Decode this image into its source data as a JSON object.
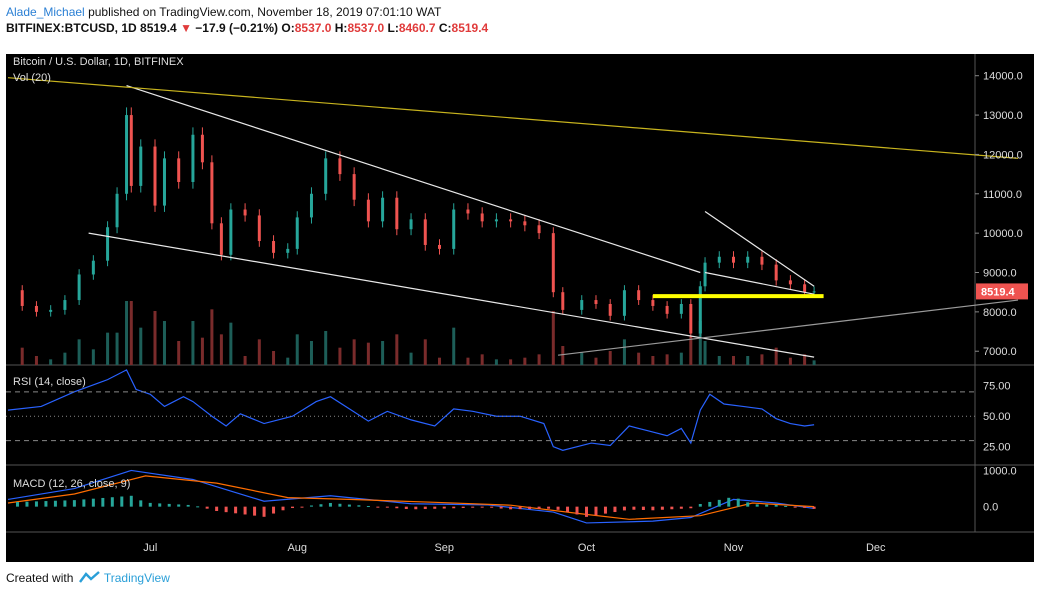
{
  "header": {
    "author": "Alade_Michael",
    "published_text": "published on TradingView.com, November 18, 2019 07:01:10 WAT",
    "symbol": "BITFINEX:BTCUSD, 1D",
    "price": "8519.4",
    "change": "−17.9 (−0.21%)",
    "o_label": "O:",
    "o": "8537.0",
    "h_label": "H:",
    "h": "8537.0",
    "l_label": "L:",
    "l": "8460.7",
    "c_label": "C:",
    "c": "8519.4"
  },
  "footer": {
    "created_with": "Created with",
    "brand": "TradingView"
  },
  "colors": {
    "up": "#26a69a",
    "down": "#ef5350",
    "rsi": "#2962ff",
    "macd": "#2962ff",
    "signal": "#ff6d00",
    "support": "#ffff00",
    "trend": "#c8b41e",
    "price_badge": "#ef5350"
  },
  "chart_data": [
    {
      "type": "candlestick",
      "title": "Bitcoin / U.S. Dollar, 1D, BITFINEX",
      "volume_label": "Vol (20)",
      "x_ticks": [
        "Jul",
        "Aug",
        "Sep",
        "Oct",
        "Nov",
        "Dec"
      ],
      "x_tick_dates": [
        "2019-07-01",
        "2019-08-01",
        "2019-09-01",
        "2019-10-01",
        "2019-11-01",
        "2019-12-01"
      ],
      "y_ticks": [
        7000,
        8000,
        9000,
        10000,
        11000,
        12000,
        13000,
        14000
      ],
      "y_tick_labels": [
        "7000.0",
        "8000.0",
        "9000.0",
        "10000.0",
        "11000.0",
        "12000.0",
        "13000.0",
        "14000.0"
      ],
      "ylim": [
        6650,
        14450
      ],
      "last_price_label": "8519.4",
      "support_level": 8400,
      "series_close": [
        [
          "2019-06-01",
          8550
        ],
        [
          "2019-06-04",
          8150
        ],
        [
          "2019-06-07",
          8000
        ],
        [
          "2019-06-10",
          8050
        ],
        [
          "2019-06-13",
          8300
        ],
        [
          "2019-06-16",
          8950
        ],
        [
          "2019-06-19",
          9300
        ],
        [
          "2019-06-22",
          10150
        ],
        [
          "2019-06-24",
          11000
        ],
        [
          "2019-06-26",
          13000
        ],
        [
          "2019-06-27",
          11200
        ],
        [
          "2019-06-29",
          12200
        ],
        [
          "2019-07-02",
          10700
        ],
        [
          "2019-07-04",
          11900
        ],
        [
          "2019-07-07",
          11300
        ],
        [
          "2019-07-10",
          12500
        ],
        [
          "2019-07-12",
          11800
        ],
        [
          "2019-07-14",
          10250
        ],
        [
          "2019-07-16",
          9450
        ],
        [
          "2019-07-18",
          10600
        ],
        [
          "2019-07-21",
          10450
        ],
        [
          "2019-07-24",
          9800
        ],
        [
          "2019-07-27",
          9500
        ],
        [
          "2019-07-30",
          9600
        ],
        [
          "2019-08-01",
          10400
        ],
        [
          "2019-08-04",
          11000
        ],
        [
          "2019-08-07",
          11900
        ],
        [
          "2019-08-10",
          11500
        ],
        [
          "2019-08-13",
          10850
        ],
        [
          "2019-08-16",
          10300
        ],
        [
          "2019-08-19",
          10900
        ],
        [
          "2019-08-22",
          10100
        ],
        [
          "2019-08-25",
          10350
        ],
        [
          "2019-08-28",
          9700
        ],
        [
          "2019-08-31",
          9600
        ],
        [
          "2019-09-03",
          10600
        ],
        [
          "2019-09-06",
          10500
        ],
        [
          "2019-09-09",
          10300
        ],
        [
          "2019-09-12",
          10350
        ],
        [
          "2019-09-15",
          10300
        ],
        [
          "2019-09-18",
          10200
        ],
        [
          "2019-09-21",
          10000
        ],
        [
          "2019-09-24",
          8500
        ],
        [
          "2019-09-26",
          8050
        ],
        [
          "2019-09-30",
          8300
        ],
        [
          "2019-10-03",
          8200
        ],
        [
          "2019-10-06",
          7900
        ],
        [
          "2019-10-09",
          8550
        ],
        [
          "2019-10-12",
          8300
        ],
        [
          "2019-10-15",
          8150
        ],
        [
          "2019-10-18",
          7950
        ],
        [
          "2019-10-21",
          8200
        ],
        [
          "2019-10-23",
          7450
        ],
        [
          "2019-10-25",
          8650
        ],
        [
          "2019-10-26",
          9250
        ],
        [
          "2019-10-29",
          9400
        ],
        [
          "2019-11-01",
          9250
        ],
        [
          "2019-11-04",
          9400
        ],
        [
          "2019-11-07",
          9200
        ],
        [
          "2019-11-10",
          8800
        ],
        [
          "2019-11-13",
          8700
        ],
        [
          "2019-11-16",
          8500
        ],
        [
          "2019-11-18",
          8519.4
        ]
      ],
      "trendlines": [
        {
          "name": "upper",
          "color": "white",
          "points": [
            [
              "2019-06-26",
              13750
            ],
            [
              "2019-10-25",
              9000
            ]
          ]
        },
        {
          "name": "lower",
          "color": "white",
          "points": [
            [
              "2019-06-18",
              10000
            ],
            [
              "2019-11-18",
              6850
            ]
          ]
        },
        {
          "name": "long-term",
          "color": "yellow",
          "points": [
            [
              "2019-06-01",
              13950
            ],
            [
              "2019-12-31",
              11900
            ]
          ]
        },
        {
          "name": "rising",
          "color": "gray",
          "points": [
            [
              "2019-09-25",
              6900
            ],
            [
              "2019-12-31",
              8300
            ]
          ]
        },
        {
          "name": "wedge-top",
          "color": "white",
          "points": [
            [
              "2019-10-26",
              10550
            ],
            [
              "2019-11-18",
              8650
            ]
          ]
        },
        {
          "name": "wedge-bottom",
          "color": "white",
          "points": [
            [
              "2019-10-26",
              9000
            ],
            [
              "2019-11-18",
              8450
            ]
          ]
        }
      ]
    },
    {
      "type": "line",
      "title": "RSI (14, close)",
      "y_ticks": [
        25,
        50,
        75
      ],
      "y_tick_labels": [
        "25.00",
        "50.00",
        "75.00"
      ],
      "levels": [
        30,
        50,
        70
      ],
      "ylim": [
        10,
        92
      ],
      "series": [
        {
          "values": [
            [
              "2019-06-01",
              55
            ],
            [
              "2019-06-08",
              58
            ],
            [
              "2019-06-15",
              70
            ],
            [
              "2019-06-22",
              80
            ],
            [
              "2019-06-26",
              88
            ],
            [
              "2019-06-28",
              72
            ],
            [
              "2019-07-01",
              68
            ],
            [
              "2019-07-04",
              58
            ],
            [
              "2019-07-08",
              66
            ],
            [
              "2019-07-10",
              62
            ],
            [
              "2019-07-14",
              50
            ],
            [
              "2019-07-17",
              42
            ],
            [
              "2019-07-20",
              52
            ],
            [
              "2019-07-25",
              44
            ],
            [
              "2019-07-31",
              50
            ],
            [
              "2019-08-05",
              62
            ],
            [
              "2019-08-08",
              66
            ],
            [
              "2019-08-12",
              56
            ],
            [
              "2019-08-16",
              46
            ],
            [
              "2019-08-20",
              54
            ],
            [
              "2019-08-25",
              47
            ],
            [
              "2019-08-30",
              42
            ],
            [
              "2019-09-03",
              56
            ],
            [
              "2019-09-07",
              54
            ],
            [
              "2019-09-12",
              50
            ],
            [
              "2019-09-17",
              50
            ],
            [
              "2019-09-22",
              44
            ],
            [
              "2019-09-24",
              25
            ],
            [
              "2019-09-26",
              22
            ],
            [
              "2019-10-02",
              28
            ],
            [
              "2019-10-06",
              26
            ],
            [
              "2019-10-10",
              42
            ],
            [
              "2019-10-14",
              38
            ],
            [
              "2019-10-18",
              34
            ],
            [
              "2019-10-21",
              40
            ],
            [
              "2019-10-23",
              28
            ],
            [
              "2019-10-25",
              55
            ],
            [
              "2019-10-27",
              68
            ],
            [
              "2019-10-30",
              60
            ],
            [
              "2019-11-03",
              58
            ],
            [
              "2019-11-07",
              56
            ],
            [
              "2019-11-10",
              48
            ],
            [
              "2019-11-13",
              44
            ],
            [
              "2019-11-16",
              42
            ],
            [
              "2019-11-18",
              43
            ]
          ]
        }
      ]
    },
    {
      "type": "line",
      "title": "MACD (12, 26, close, 9)",
      "y_ticks": [
        0,
        1000
      ],
      "y_tick_labels": [
        "0.0",
        "1000.0"
      ],
      "ylim": [
        -700,
        1150
      ],
      "series": [
        {
          "role": "macd",
          "values": [
            [
              "2019-06-01",
              200
            ],
            [
              "2019-06-15",
              500
            ],
            [
              "2019-06-27",
              1000
            ],
            [
              "2019-07-10",
              750
            ],
            [
              "2019-07-25",
              150
            ],
            [
              "2019-08-08",
              300
            ],
            [
              "2019-08-25",
              80
            ],
            [
              "2019-09-10",
              50
            ],
            [
              "2019-09-24",
              -150
            ],
            [
              "2019-10-01",
              -450
            ],
            [
              "2019-10-15",
              -400
            ],
            [
              "2019-10-23",
              -300
            ],
            [
              "2019-11-01",
              200
            ],
            [
              "2019-11-10",
              100
            ],
            [
              "2019-11-18",
              -50
            ]
          ]
        },
        {
          "role": "signal",
          "values": [
            [
              "2019-06-01",
              100
            ],
            [
              "2019-06-15",
              350
            ],
            [
              "2019-06-30",
              850
            ],
            [
              "2019-07-15",
              650
            ],
            [
              "2019-07-30",
              250
            ],
            [
              "2019-08-12",
              200
            ],
            [
              "2019-08-30",
              120
            ],
            [
              "2019-09-15",
              40
            ],
            [
              "2019-09-30",
              -200
            ],
            [
              "2019-10-10",
              -350
            ],
            [
              "2019-10-25",
              -250
            ],
            [
              "2019-11-05",
              100
            ],
            [
              "2019-11-18",
              0
            ]
          ]
        }
      ]
    }
  ]
}
